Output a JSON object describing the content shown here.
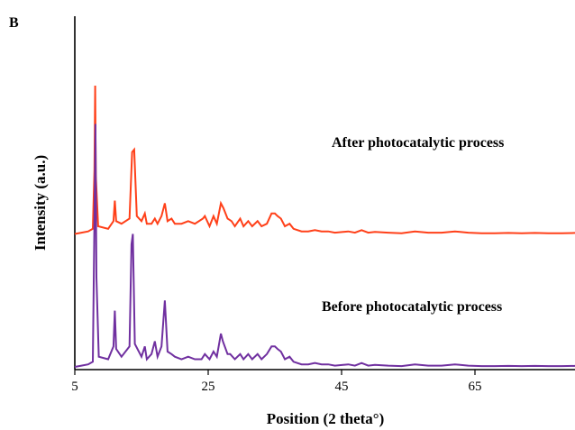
{
  "chart_data": {
    "type": "line",
    "panel_label": "B",
    "xlabel": "Position (2 theta°)",
    "ylabel": "Intensity (a.u.)",
    "xlim": [
      5,
      80
    ],
    "x_ticks": [
      5,
      25,
      45,
      65
    ],
    "y_ticks_shown": false,
    "legend": "none",
    "grid": false,
    "annotations": [
      {
        "text": "After photocatalytic process"
      },
      {
        "text": "Before photocatalytic process"
      }
    ],
    "series": [
      {
        "color": "#ff4019",
        "baseline_offset": 0.52,
        "points": [
          [
            5,
            0.0
          ],
          [
            6,
            0.005
          ],
          [
            7,
            0.01
          ],
          [
            7.7,
            0.02
          ],
          [
            7.95,
            0.25
          ],
          [
            8.05,
            0.58
          ],
          [
            8.15,
            0.23
          ],
          [
            8.5,
            0.03
          ],
          [
            10,
            0.02
          ],
          [
            10.8,
            0.05
          ],
          [
            11,
            0.13
          ],
          [
            11.2,
            0.05
          ],
          [
            12,
            0.04
          ],
          [
            13.2,
            0.06
          ],
          [
            13.6,
            0.32
          ],
          [
            13.9,
            0.33
          ],
          [
            14.3,
            0.07
          ],
          [
            15,
            0.05
          ],
          [
            15.5,
            0.08
          ],
          [
            15.8,
            0.04
          ],
          [
            16.5,
            0.04
          ],
          [
            17,
            0.06
          ],
          [
            17.4,
            0.04
          ],
          [
            18,
            0.07
          ],
          [
            18.5,
            0.12
          ],
          [
            18.9,
            0.05
          ],
          [
            19.5,
            0.06
          ],
          [
            20,
            0.04
          ],
          [
            21,
            0.04
          ],
          [
            22,
            0.05
          ],
          [
            23,
            0.04
          ],
          [
            24.2,
            0.06
          ],
          [
            24.5,
            0.07
          ],
          [
            25.2,
            0.03
          ],
          [
            25.8,
            0.07
          ],
          [
            26.3,
            0.04
          ],
          [
            26.9,
            0.12
          ],
          [
            27.3,
            0.1
          ],
          [
            27.9,
            0.06
          ],
          [
            28.5,
            0.05
          ],
          [
            29,
            0.03
          ],
          [
            29.8,
            0.06
          ],
          [
            30.3,
            0.03
          ],
          [
            31,
            0.05
          ],
          [
            31.6,
            0.03
          ],
          [
            32.4,
            0.05
          ],
          [
            33,
            0.03
          ],
          [
            33.8,
            0.04
          ],
          [
            34.5,
            0.08
          ],
          [
            35,
            0.08
          ],
          [
            35.4,
            0.07
          ],
          [
            35.9,
            0.06
          ],
          [
            36.5,
            0.03
          ],
          [
            37.2,
            0.04
          ],
          [
            37.8,
            0.02
          ],
          [
            39,
            0.01
          ],
          [
            40,
            0.01
          ],
          [
            41,
            0.015
          ],
          [
            42,
            0.01
          ],
          [
            43,
            0.01
          ],
          [
            44,
            0.005
          ],
          [
            46,
            0.01
          ],
          [
            47,
            0.005
          ],
          [
            48,
            0.015
          ],
          [
            49,
            0.005
          ],
          [
            50,
            0.008
          ],
          [
            52,
            0.005
          ],
          [
            54,
            0.003
          ],
          [
            56,
            0.01
          ],
          [
            58,
            0.005
          ],
          [
            60,
            0.005
          ],
          [
            62,
            0.01
          ],
          [
            64,
            0.005
          ],
          [
            66,
            0.003
          ],
          [
            68,
            0.003
          ],
          [
            70,
            0.004
          ],
          [
            72,
            0.003
          ],
          [
            74,
            0.004
          ],
          [
            76,
            0.003
          ],
          [
            78,
            0.003
          ],
          [
            80,
            0.004
          ]
        ]
      },
      {
        "color": "#7030a0",
        "baseline_offset": 0.0,
        "points": [
          [
            5,
            0.0
          ],
          [
            6,
            0.005
          ],
          [
            7,
            0.01
          ],
          [
            7.7,
            0.02
          ],
          [
            8.0,
            0.7
          ],
          [
            8.1,
            0.95
          ],
          [
            8.25,
            0.35
          ],
          [
            8.6,
            0.04
          ],
          [
            10,
            0.03
          ],
          [
            10.8,
            0.08
          ],
          [
            11,
            0.22
          ],
          [
            11.2,
            0.07
          ],
          [
            12,
            0.04
          ],
          [
            13.2,
            0.08
          ],
          [
            13.5,
            0.48
          ],
          [
            13.7,
            0.52
          ],
          [
            14,
            0.09
          ],
          [
            15,
            0.04
          ],
          [
            15.5,
            0.08
          ],
          [
            15.8,
            0.03
          ],
          [
            16.5,
            0.05
          ],
          [
            17,
            0.1
          ],
          [
            17.4,
            0.04
          ],
          [
            18,
            0.08
          ],
          [
            18.5,
            0.26
          ],
          [
            18.9,
            0.06
          ],
          [
            19.5,
            0.05
          ],
          [
            20,
            0.04
          ],
          [
            21,
            0.03
          ],
          [
            22,
            0.04
          ],
          [
            23,
            0.03
          ],
          [
            24,
            0.03
          ],
          [
            24.5,
            0.05
          ],
          [
            25.2,
            0.03
          ],
          [
            25.8,
            0.06
          ],
          [
            26.3,
            0.04
          ],
          [
            26.9,
            0.13
          ],
          [
            27.2,
            0.1
          ],
          [
            27.9,
            0.05
          ],
          [
            28.3,
            0.05
          ],
          [
            29,
            0.03
          ],
          [
            29.8,
            0.05
          ],
          [
            30.3,
            0.03
          ],
          [
            31,
            0.05
          ],
          [
            31.6,
            0.03
          ],
          [
            32.4,
            0.05
          ],
          [
            33,
            0.03
          ],
          [
            33.8,
            0.05
          ],
          [
            34.5,
            0.08
          ],
          [
            35,
            0.08
          ],
          [
            35.4,
            0.07
          ],
          [
            35.9,
            0.06
          ],
          [
            36.5,
            0.03
          ],
          [
            37.2,
            0.04
          ],
          [
            37.8,
            0.02
          ],
          [
            39,
            0.01
          ],
          [
            40,
            0.01
          ],
          [
            41,
            0.015
          ],
          [
            42,
            0.01
          ],
          [
            43,
            0.01
          ],
          [
            44,
            0.005
          ],
          [
            46,
            0.01
          ],
          [
            47,
            0.005
          ],
          [
            48,
            0.015
          ],
          [
            49,
            0.005
          ],
          [
            50,
            0.008
          ],
          [
            52,
            0.005
          ],
          [
            54,
            0.003
          ],
          [
            56,
            0.01
          ],
          [
            58,
            0.005
          ],
          [
            60,
            0.005
          ],
          [
            62,
            0.01
          ],
          [
            64,
            0.005
          ],
          [
            66,
            0.003
          ],
          [
            68,
            0.003
          ],
          [
            70,
            0.004
          ],
          [
            72,
            0.003
          ],
          [
            74,
            0.004
          ],
          [
            76,
            0.003
          ],
          [
            78,
            0.003
          ],
          [
            80,
            0.004
          ]
        ]
      }
    ]
  }
}
